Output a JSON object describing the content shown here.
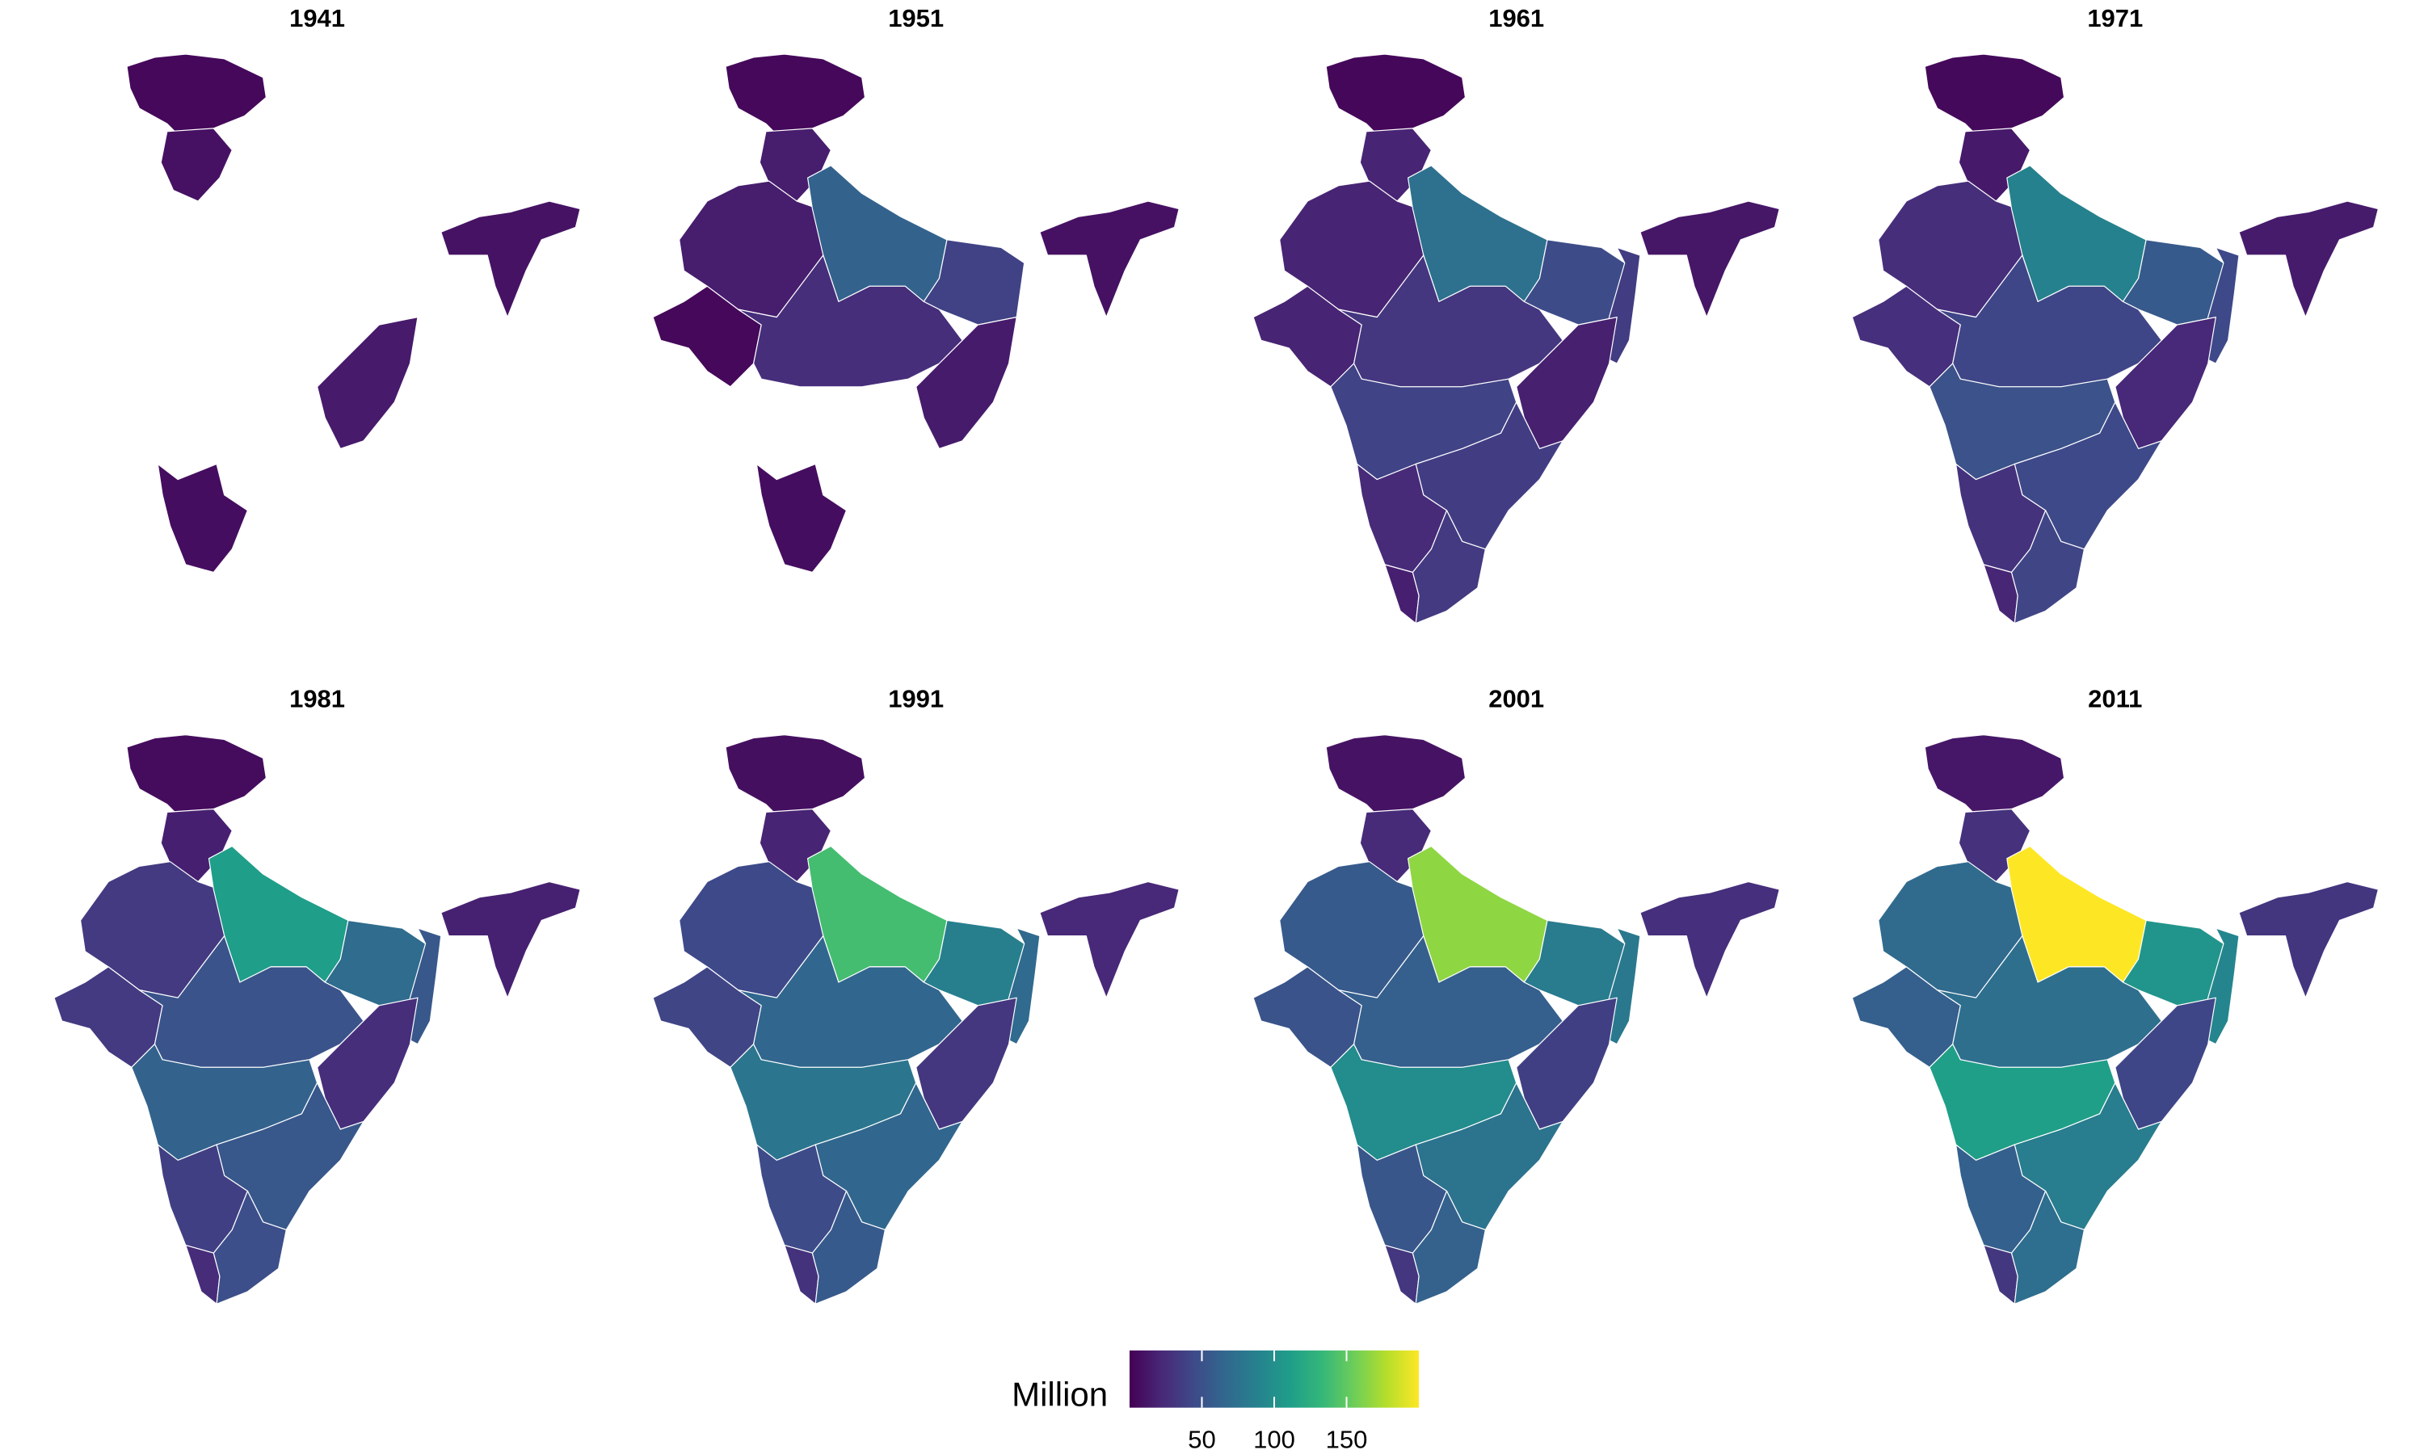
{
  "maps": {
    "panels": [
      {
        "title": "1941",
        "values": [
          4,
          9,
          null,
          null,
          null,
          null,
          null,
          null,
          14,
          null,
          null,
          7,
          null,
          null,
          10
        ]
      },
      {
        "title": "1951",
        "values": [
          4,
          16,
          16,
          4,
          63,
          39,
          null,
          26,
          15,
          null,
          null,
          7,
          null,
          null,
          9
        ]
      },
      {
        "title": "1961",
        "values": [
          3.6,
          20,
          20,
          20,
          74,
          46,
          35,
          32,
          17.5,
          40,
          36,
          24,
          17,
          34,
          12
        ]
      },
      {
        "title": "1971",
        "values": [
          4.6,
          13.5,
          26,
          27,
          88,
          56,
          44,
          42,
          22,
          50,
          44,
          29,
          21,
          41,
          15
        ]
      },
      {
        "title": "1981",
        "values": [
          6,
          17,
          34,
          34,
          111,
          70,
          55,
          52,
          26,
          63,
          54,
          37,
          25,
          48,
          18
        ]
      },
      {
        "title": "1991",
        "values": [
          7.7,
          20,
          44,
          41,
          139,
          86,
          68,
          66,
          32,
          79,
          66,
          45,
          29,
          56,
          22
        ]
      },
      {
        "title": "2001",
        "values": [
          10,
          24,
          56,
          51,
          166,
          83,
          80,
          60,
          37,
          97,
          76,
          53,
          32,
          62,
          27
        ]
      },
      {
        "title": "2011",
        "values": [
          12.5,
          28,
          69,
          60,
          200,
          104,
          91,
          73,
          42,
          112,
          85,
          61,
          33,
          72,
          31
        ]
      }
    ],
    "legend": {
      "title": "Million",
      "range": [
        0,
        200
      ],
      "ticks": [
        50,
        100,
        150
      ]
    }
  }
}
